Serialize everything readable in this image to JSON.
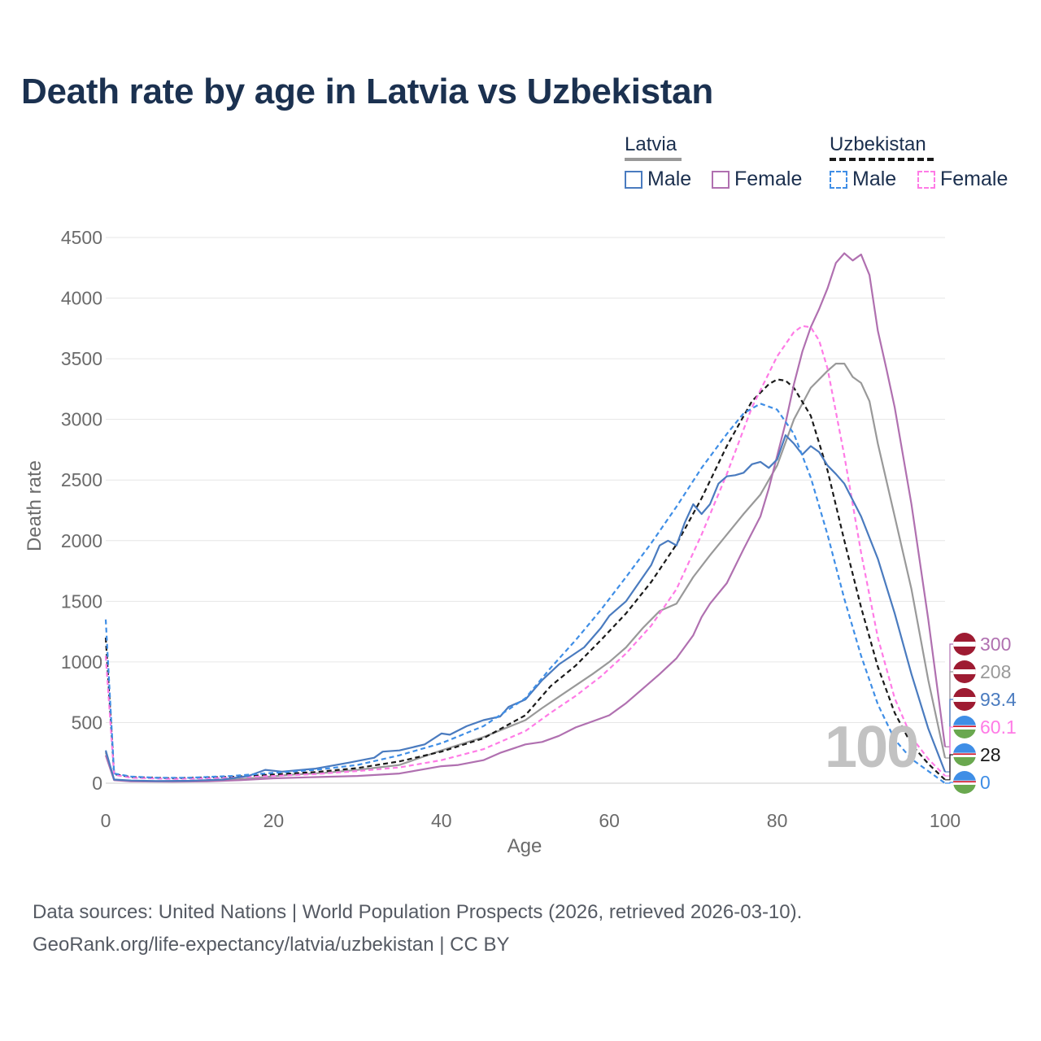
{
  "title": "Death rate by age in Latvia vs Uzbekistan",
  "legend": {
    "groups": [
      {
        "name": "Latvia",
        "items": [
          "Male",
          "Female"
        ]
      },
      {
        "name": "Uzbekistan",
        "items": [
          "Male",
          "Female"
        ]
      }
    ]
  },
  "watermark": "100",
  "end_labels": [
    "300",
    "208",
    "93.4",
    "60.1",
    "28",
    "0"
  ],
  "footer": {
    "line1": "Data sources: United Nations | World Population Prospects (2026, retrieved 2026-03-10).",
    "line2": "GeoRank.org/life-expectancy/latvia/uzbekistan | CC BY"
  },
  "colors": {
    "latvia_male": "#4a7bbf",
    "latvia_female": "#b070b0",
    "latvia_total": "#999999",
    "uzb_male": "#3f8ee6",
    "uzb_female": "#ff7be6",
    "uzb_total": "#1a1a1a",
    "grid": "#e6e6e6",
    "axis_text": "#6b6b6b"
  },
  "chart_data": {
    "type": "line",
    "title": "Death rate by age in Latvia vs Uzbekistan",
    "xlabel": "Age",
    "ylabel": "Death rate",
    "xlim": [
      0,
      100
    ],
    "ylim": [
      0,
      4500
    ],
    "xticks": [
      0,
      20,
      40,
      60,
      80,
      100
    ],
    "yticks": [
      0,
      500,
      1000,
      1500,
      2000,
      2500,
      3000,
      3500,
      4000,
      4500
    ],
    "grid": true,
    "series": [
      {
        "name": "Latvia Male",
        "key": "latvia_male",
        "dash": false,
        "points": [
          [
            0,
            270
          ],
          [
            1,
            30
          ],
          [
            3,
            22
          ],
          [
            6,
            18
          ],
          [
            10,
            20
          ],
          [
            14,
            30
          ],
          [
            17,
            60
          ],
          [
            19,
            110
          ],
          [
            21,
            95
          ],
          [
            25,
            120
          ],
          [
            29,
            170
          ],
          [
            32,
            210
          ],
          [
            33,
            260
          ],
          [
            35,
            270
          ],
          [
            38,
            320
          ],
          [
            40,
            410
          ],
          [
            41,
            400
          ],
          [
            43,
            470
          ],
          [
            45,
            520
          ],
          [
            47,
            550
          ],
          [
            48,
            630
          ],
          [
            50,
            690
          ],
          [
            52,
            850
          ],
          [
            54,
            980
          ],
          [
            57,
            1120
          ],
          [
            59,
            1280
          ],
          [
            60,
            1380
          ],
          [
            62,
            1500
          ],
          [
            65,
            1800
          ],
          [
            66,
            1960
          ],
          [
            67,
            2000
          ],
          [
            68,
            1960
          ],
          [
            69,
            2150
          ],
          [
            70,
            2300
          ],
          [
            71,
            2220
          ],
          [
            72,
            2300
          ],
          [
            73,
            2470
          ],
          [
            74,
            2530
          ],
          [
            75,
            2540
          ],
          [
            76,
            2560
          ],
          [
            77,
            2630
          ],
          [
            78,
            2650
          ],
          [
            79,
            2600
          ],
          [
            80,
            2670
          ],
          [
            81,
            2870
          ],
          [
            82,
            2800
          ],
          [
            83,
            2710
          ],
          [
            84,
            2780
          ],
          [
            85,
            2730
          ],
          [
            86,
            2620
          ],
          [
            87,
            2550
          ],
          [
            88,
            2470
          ],
          [
            90,
            2200
          ],
          [
            92,
            1850
          ],
          [
            94,
            1400
          ],
          [
            96,
            900
          ],
          [
            98,
            450
          ],
          [
            100,
            93.4
          ]
        ]
      },
      {
        "name": "Latvia Female",
        "key": "latvia_female",
        "dash": false,
        "points": [
          [
            0,
            230
          ],
          [
            1,
            25
          ],
          [
            3,
            15
          ],
          [
            8,
            12
          ],
          [
            12,
            15
          ],
          [
            16,
            25
          ],
          [
            20,
            40
          ],
          [
            25,
            50
          ],
          [
            30,
            60
          ],
          [
            35,
            80
          ],
          [
            40,
            140
          ],
          [
            42,
            150
          ],
          [
            45,
            190
          ],
          [
            47,
            250
          ],
          [
            50,
            320
          ],
          [
            52,
            340
          ],
          [
            54,
            390
          ],
          [
            56,
            460
          ],
          [
            58,
            510
          ],
          [
            60,
            560
          ],
          [
            62,
            660
          ],
          [
            64,
            780
          ],
          [
            66,
            900
          ],
          [
            68,
            1030
          ],
          [
            70,
            1220
          ],
          [
            71,
            1370
          ],
          [
            72,
            1480
          ],
          [
            74,
            1650
          ],
          [
            76,
            1930
          ],
          [
            78,
            2200
          ],
          [
            79,
            2430
          ],
          [
            80,
            2700
          ],
          [
            81,
            2970
          ],
          [
            82,
            3290
          ],
          [
            83,
            3560
          ],
          [
            84,
            3760
          ],
          [
            85,
            3910
          ],
          [
            86,
            4080
          ],
          [
            87,
            4290
          ],
          [
            88,
            4370
          ],
          [
            89,
            4310
          ],
          [
            90,
            4360
          ],
          [
            91,
            4190
          ],
          [
            92,
            3730
          ],
          [
            93,
            3420
          ],
          [
            94,
            3100
          ],
          [
            96,
            2300
          ],
          [
            98,
            1350
          ],
          [
            100,
            300
          ]
        ]
      },
      {
        "name": "Latvia Total",
        "key": "latvia_total",
        "dash": false,
        "points": [
          [
            0,
            255
          ],
          [
            1,
            28
          ],
          [
            3,
            18
          ],
          [
            8,
            16
          ],
          [
            14,
            22
          ],
          [
            18,
            45
          ],
          [
            22,
            70
          ],
          [
            26,
            85
          ],
          [
            30,
            110
          ],
          [
            35,
            150
          ],
          [
            40,
            270
          ],
          [
            45,
            380
          ],
          [
            50,
            520
          ],
          [
            52,
            620
          ],
          [
            55,
            760
          ],
          [
            58,
            900
          ],
          [
            60,
            1000
          ],
          [
            62,
            1120
          ],
          [
            64,
            1280
          ],
          [
            66,
            1420
          ],
          [
            68,
            1480
          ],
          [
            70,
            1700
          ],
          [
            72,
            1880
          ],
          [
            74,
            2050
          ],
          [
            76,
            2220
          ],
          [
            78,
            2380
          ],
          [
            80,
            2620
          ],
          [
            82,
            3000
          ],
          [
            84,
            3260
          ],
          [
            86,
            3400
          ],
          [
            87,
            3460
          ],
          [
            88,
            3460
          ],
          [
            89,
            3350
          ],
          [
            90,
            3300
          ],
          [
            91,
            3150
          ],
          [
            92,
            2800
          ],
          [
            94,
            2200
          ],
          [
            96,
            1600
          ],
          [
            98,
            850
          ],
          [
            100,
            208
          ]
        ]
      },
      {
        "name": "Uzbekistan Male",
        "key": "uzb_male",
        "dash": true,
        "points": [
          [
            0,
            1350
          ],
          [
            1,
            80
          ],
          [
            3,
            55
          ],
          [
            6,
            45
          ],
          [
            10,
            45
          ],
          [
            15,
            60
          ],
          [
            20,
            85
          ],
          [
            25,
            110
          ],
          [
            30,
            150
          ],
          [
            35,
            230
          ],
          [
            40,
            330
          ],
          [
            45,
            470
          ],
          [
            50,
            700
          ],
          [
            53,
            950
          ],
          [
            56,
            1180
          ],
          [
            59,
            1430
          ],
          [
            62,
            1700
          ],
          [
            65,
            1980
          ],
          [
            68,
            2280
          ],
          [
            71,
            2600
          ],
          [
            74,
            2880
          ],
          [
            76,
            3050
          ],
          [
            78,
            3130
          ],
          [
            80,
            3080
          ],
          [
            82,
            2880
          ],
          [
            84,
            2520
          ],
          [
            86,
            2050
          ],
          [
            88,
            1520
          ],
          [
            90,
            1050
          ],
          [
            92,
            650
          ],
          [
            94,
            360
          ],
          [
            96,
            200
          ],
          [
            98,
            100
          ],
          [
            100,
            0
          ]
        ]
      },
      {
        "name": "Uzbekistan Female",
        "key": "uzb_female",
        "dash": true,
        "points": [
          [
            0,
            1050
          ],
          [
            1,
            70
          ],
          [
            3,
            45
          ],
          [
            8,
            35
          ],
          [
            15,
            45
          ],
          [
            20,
            60
          ],
          [
            25,
            75
          ],
          [
            30,
            100
          ],
          [
            35,
            130
          ],
          [
            40,
            190
          ],
          [
            45,
            280
          ],
          [
            50,
            430
          ],
          [
            53,
            580
          ],
          [
            56,
            720
          ],
          [
            59,
            880
          ],
          [
            62,
            1070
          ],
          [
            65,
            1300
          ],
          [
            68,
            1600
          ],
          [
            71,
            2050
          ],
          [
            74,
            2550
          ],
          [
            77,
            3100
          ],
          [
            80,
            3520
          ],
          [
            82,
            3720
          ],
          [
            83,
            3770
          ],
          [
            84,
            3760
          ],
          [
            85,
            3650
          ],
          [
            86,
            3420
          ],
          [
            88,
            2700
          ],
          [
            90,
            1900
          ],
          [
            92,
            1200
          ],
          [
            94,
            700
          ],
          [
            96,
            380
          ],
          [
            98,
            200
          ],
          [
            100,
            60.1
          ]
        ]
      },
      {
        "name": "Uzbekistan Total",
        "key": "uzb_total",
        "dash": true,
        "points": [
          [
            0,
            1200
          ],
          [
            1,
            75
          ],
          [
            3,
            50
          ],
          [
            8,
            40
          ],
          [
            15,
            52
          ],
          [
            20,
            72
          ],
          [
            25,
            92
          ],
          [
            30,
            125
          ],
          [
            35,
            180
          ],
          [
            40,
            260
          ],
          [
            45,
            370
          ],
          [
            50,
            560
          ],
          [
            53,
            800
          ],
          [
            56,
            970
          ],
          [
            59,
            1180
          ],
          [
            62,
            1400
          ],
          [
            65,
            1660
          ],
          [
            68,
            1970
          ],
          [
            71,
            2350
          ],
          [
            74,
            2780
          ],
          [
            77,
            3150
          ],
          [
            79,
            3290
          ],
          [
            80,
            3330
          ],
          [
            81,
            3320
          ],
          [
            82,
            3260
          ],
          [
            84,
            3030
          ],
          [
            86,
            2580
          ],
          [
            88,
            2000
          ],
          [
            90,
            1450
          ],
          [
            92,
            960
          ],
          [
            94,
            580
          ],
          [
            96,
            320
          ],
          [
            98,
            160
          ],
          [
            100,
            28
          ]
        ]
      }
    ]
  }
}
